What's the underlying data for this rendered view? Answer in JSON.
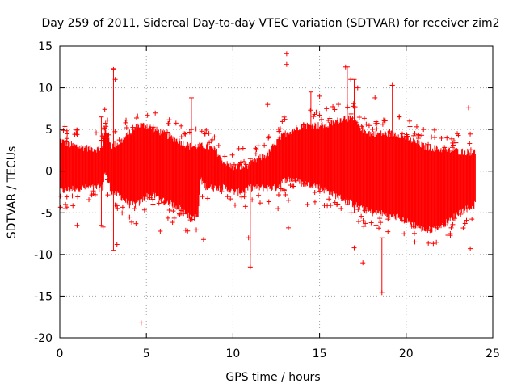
{
  "chart_data": {
    "type": "scatter",
    "title": "Day 259 of 2011, Sidereal Day-to-day VTEC variation (SDTVAR) for receiver zim2",
    "xlabel": "GPS time / hours",
    "ylabel": "SDTVAR / TECUs",
    "xlim": [
      0,
      25
    ],
    "ylim": [
      -20,
      15
    ],
    "x_ticks": [
      0,
      5,
      10,
      15,
      20,
      25
    ],
    "x_tick_labels": [
      "0",
      "5",
      "10",
      "15",
      "20",
      "25"
    ],
    "y_ticks": [
      -20,
      -15,
      -10,
      -5,
      0,
      5,
      10,
      15
    ],
    "y_tick_labels": [
      "-20",
      "-15",
      "-10",
      "-5",
      "0",
      "5",
      "10",
      "15"
    ],
    "grid": true,
    "marker": "+",
    "error_bars": true,
    "series_color": "#ff0000",
    "band": {
      "x": [
        0,
        0.5,
        1,
        1.5,
        2,
        2.5,
        2.6,
        3,
        3.5,
        4,
        4.5,
        5,
        5.5,
        6,
        6.5,
        7,
        7.5,
        8,
        8.1,
        8.5,
        9,
        9.5,
        10,
        10.5,
        11,
        11.5,
        12,
        12.5,
        13,
        13.5,
        14,
        14.5,
        15,
        15.5,
        16,
        16.5,
        17,
        17.5,
        18,
        18.5,
        19,
        19.5,
        20,
        20.5,
        21,
        21.5,
        22,
        22.5,
        23,
        23.5,
        24
      ],
      "upper": [
        3.8,
        3.2,
        3.0,
        2.8,
        2.7,
        2.6,
        5.5,
        3.0,
        3.5,
        4.5,
        5.5,
        5.5,
        5.0,
        4.5,
        4.0,
        3.5,
        3.0,
        3.0,
        3.0,
        3.0,
        2.5,
        1.0,
        0.5,
        0.5,
        0.8,
        1.5,
        2.0,
        3.5,
        4.5,
        5.0,
        5.5,
        5.5,
        5.5,
        5.5,
        6.0,
        6.5,
        6.0,
        5.0,
        4.5,
        4.5,
        4.5,
        4.5,
        4.0,
        3.5,
        3.0,
        2.8,
        2.6,
        2.5,
        2.4,
        2.3,
        2.3
      ],
      "lower": [
        -2.5,
        -2.2,
        -2.0,
        -2.0,
        -2.0,
        -2.0,
        0.0,
        -2.5,
        -3.0,
        -4.0,
        -4.0,
        -3.0,
        -3.0,
        -3.5,
        -4.0,
        -4.5,
        -5.5,
        -5.5,
        -1.0,
        -2.0,
        -2.0,
        -2.0,
        -2.5,
        -2.5,
        -2.0,
        -2.0,
        -2.0,
        -2.0,
        -1.0,
        -1.0,
        -1.5,
        -1.5,
        -2.0,
        -2.5,
        -3.0,
        -3.5,
        -4.0,
        -4.5,
        -5.0,
        -5.0,
        -5.5,
        -5.5,
        -6.0,
        -6.5,
        -7.0,
        -7.0,
        -6.5,
        -6.0,
        -5.0,
        -4.5,
        -4.0
      ]
    },
    "outliers": [
      {
        "x": 4.7,
        "y": -18.2
      },
      {
        "x": 13.1,
        "y": 14.1
      },
      {
        "x": 13.1,
        "y": 12.8
      },
      {
        "x": 13.2,
        "y": -6.8
      },
      {
        "x": 13.2,
        "y": -3.5
      },
      {
        "x": 12.0,
        "y": 8.0
      },
      {
        "x": 11.0,
        "y": -11.5
      },
      {
        "x": 10.9,
        "y": -8.0
      },
      {
        "x": 18.6,
        "y": -14.6
      },
      {
        "x": 19.2,
        "y": 10.3
      },
      {
        "x": 17.5,
        "y": -11.0
      },
      {
        "x": 17.0,
        "y": -9.2
      },
      {
        "x": 16.5,
        "y": 12.5
      },
      {
        "x": 23.6,
        "y": 7.6
      },
      {
        "x": 23.7,
        "y": -9.3
      },
      {
        "x": 2.5,
        "y": -6.7
      },
      {
        "x": 5.8,
        "y": -7.2
      },
      {
        "x": 1.0,
        "y": -6.5
      },
      {
        "x": 1.0,
        "y": 4.4
      },
      {
        "x": 8.3,
        "y": -8.2
      },
      {
        "x": 3.1,
        "y": 12.2
      },
      {
        "x": 3.2,
        "y": 11.0
      },
      {
        "x": 3.3,
        "y": -8.8
      },
      {
        "x": 4.4,
        "y": -6.3
      },
      {
        "x": 3.8,
        "y": 5.8
      },
      {
        "x": 7.6,
        "y": 5.0
      },
      {
        "x": 15.0,
        "y": 9.0
      },
      {
        "x": 15.4,
        "y": 7.5
      },
      {
        "x": 20.5,
        "y": -8.5
      },
      {
        "x": 22.6,
        "y": -6.8
      },
      {
        "x": 18.2,
        "y": 8.8
      },
      {
        "x": 19.6,
        "y": 6.5
      },
      {
        "x": 20.2,
        "y": 6.0
      },
      {
        "x": 12.6,
        "y": -4.5
      },
      {
        "x": 14.3,
        "y": -4.0
      },
      {
        "x": 21.0,
        "y": 5.0
      },
      {
        "x": 16.8,
        "y": 11.0
      },
      {
        "x": 17.2,
        "y": 10.0
      }
    ],
    "spikes": [
      {
        "x": 3.1,
        "y1": -9.5,
        "y2": 12.3
      },
      {
        "x": 7.6,
        "y1": -5.5,
        "y2": 8.8
      },
      {
        "x": 11.0,
        "y1": -11.6,
        "y2": 1.5
      },
      {
        "x": 18.6,
        "y1": -14.6,
        "y2": -8.0
      },
      {
        "x": 19.2,
        "y1": 4.0,
        "y2": 10.3
      },
      {
        "x": 17.0,
        "y1": -5.0,
        "y2": 11.0
      },
      {
        "x": 2.4,
        "y1": -6.5,
        "y2": 6.5
      },
      {
        "x": 14.5,
        "y1": -2.0,
        "y2": 9.5
      },
      {
        "x": 16.6,
        "y1": -4.0,
        "y2": 12.5
      }
    ]
  }
}
